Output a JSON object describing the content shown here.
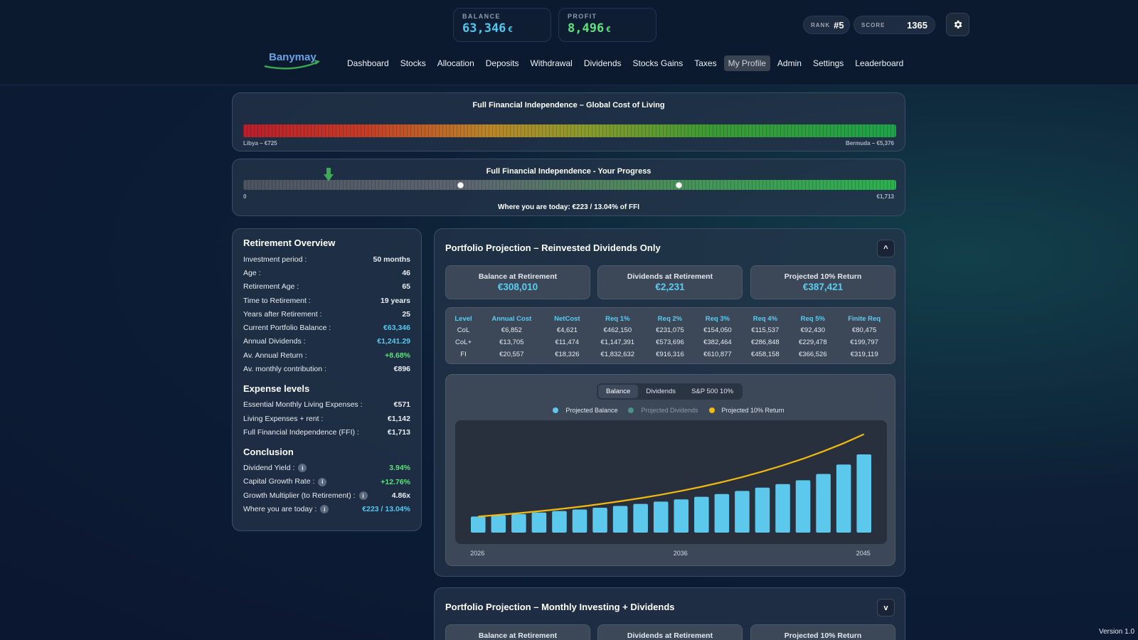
{
  "header": {
    "balance": {
      "label": "BALANCE",
      "value": "63,346",
      "currency": "€"
    },
    "profit": {
      "label": "PROFIT",
      "value": "8,496",
      "currency": "€"
    },
    "rank": {
      "label": "RANK",
      "value": "#5"
    },
    "score": {
      "label": "SCORE",
      "value": "1365"
    },
    "logo_text": "Banymay",
    "settings_icon": "gear-icon"
  },
  "nav": [
    "Dashboard",
    "Stocks",
    "Allocation",
    "Deposits",
    "Withdrawal",
    "Dividends",
    "Stocks Gains",
    "Taxes",
    "My Profile",
    "Admin",
    "Settings",
    "Leaderboard"
  ],
  "nav_active": "My Profile",
  "cost_of_living": {
    "title": "Full Financial Independence – Global Cost of Living",
    "min_label": "Libya – €725",
    "max_label": "Bermuda – €5,376"
  },
  "progress": {
    "title": "Full Financial Independence - Your Progress",
    "min_label": "0",
    "max_label": "€1,713",
    "today_text": "Where you are today: €223 / 13.04% of FFI",
    "fraction": 0.1304,
    "markers": [
      0.333,
      0.667
    ]
  },
  "overview": {
    "title": "Retirement Overview",
    "rows": [
      {
        "label": "Investment period :",
        "value": "50 months"
      },
      {
        "label": "Age :",
        "value": "46"
      },
      {
        "label": "Retirement Age :",
        "value": "65"
      },
      {
        "label": "Time to Retirement :",
        "value": "19 years"
      },
      {
        "label": "Years after Retirement :",
        "value": "25"
      },
      {
        "label": "Current Portfolio Balance :",
        "value": "€63,346"
      },
      {
        "label": "Annual Dividends :",
        "value": "€1,241.29"
      },
      {
        "label": "Av. Annual Return :",
        "value": "+8.68%"
      },
      {
        "label": "Av. monthly contribution :",
        "value": "€896"
      }
    ]
  },
  "expenses": {
    "title": "Expense levels",
    "rows": [
      {
        "label": "Essential Monthly Living Expenses :",
        "value": "€571"
      },
      {
        "label": "Living Expenses + rent :",
        "value": "€1,142"
      },
      {
        "label": "Full Financial Independence (FFI) :",
        "value": "€1,713"
      }
    ]
  },
  "conclusion": {
    "title": "Conclusion",
    "rows": [
      {
        "label": "Dividend Yield :",
        "value": "3.94%"
      },
      {
        "label": "Capital Growth Rate :",
        "value": "+12.76%"
      },
      {
        "label": "Growth Multiplier (to Retirement) :",
        "value": "4.86x"
      },
      {
        "label": "Where you are today :",
        "value": "€223 / 13.04%"
      }
    ]
  },
  "projection1": {
    "title": "Portfolio Projection – Reinvested Dividends Only",
    "collapse": "^",
    "kpis": [
      {
        "label": "Balance at Retirement",
        "value": "€308,010"
      },
      {
        "label": "Dividends at Retirement",
        "value": "€2,231"
      },
      {
        "label": "Projected 10% Return",
        "value": "€387,421"
      }
    ],
    "table": {
      "headers": [
        "Level",
        "Annual Cost",
        "NetCost",
        "Req 1%",
        "Req 2%",
        "Req 3%",
        "Req 4%",
        "Req 5%",
        "Finite Req"
      ],
      "rows": [
        [
          "CoL",
          "€6,852",
          "€4,621",
          "€462,150",
          "€231,075",
          "€154,050",
          "€115,537",
          "€92,430",
          "€80,475"
        ],
        [
          "CoL+",
          "€13,705",
          "€11,474",
          "€1,147,391",
          "€573,696",
          "€382,464",
          "€286,848",
          "€229,478",
          "€199,797"
        ],
        [
          "FI",
          "€20,557",
          "€18,326",
          "€1,832,632",
          "€916,316",
          "€610,877",
          "€458,158",
          "€366,526",
          "€319,119"
        ]
      ]
    },
    "tabs": [
      "Balance",
      "Dividends",
      "S&P 500 10%"
    ],
    "active_tab": "Balance",
    "legend": [
      {
        "name": "Projected Balance",
        "color": "#5cc8ec"
      },
      {
        "name": "Projected Dividends",
        "color": "#4f8f86"
      },
      {
        "name": "Projected 10% Return",
        "color": "#f2b90f"
      }
    ]
  },
  "chart_data": {
    "type": "bar",
    "categories": [
      "2026",
      "2027",
      "2028",
      "2029",
      "2030",
      "2031",
      "2032",
      "2033",
      "2034",
      "2035",
      "2036",
      "2037",
      "2038",
      "2039",
      "2040",
      "2041",
      "2042",
      "2043",
      "2044",
      "2045"
    ],
    "x_tick_labels": [
      "2026",
      "2036",
      "2045"
    ],
    "series": [
      {
        "name": "Projected Balance",
        "type": "bar",
        "values": [
          63346,
          68000,
          73000,
          79000,
          85000,
          91000,
          98000,
          105000,
          113000,
          122000,
          131000,
          141000,
          152000,
          164000,
          177000,
          191000,
          206000,
          231000,
          268000,
          308010
        ]
      },
      {
        "name": "Projected 10% Return",
        "type": "line",
        "values": [
          63346,
          69700,
          76600,
          84300,
          92700,
          102000,
          112200,
          123400,
          135800,
          149300,
          164300,
          180700,
          198800,
          218600,
          240500,
          264500,
          291000,
          320100,
          352100,
          387421
        ]
      }
    ],
    "ylim": [
      0,
      420000
    ],
    "grid": false
  },
  "projection2": {
    "title": "Portfolio Projection – Monthly Investing + Dividends",
    "collapse": "v",
    "kpis": [
      {
        "label": "Balance at Retirement"
      },
      {
        "label": "Dividends at Retirement"
      },
      {
        "label": "Projected 10% Return"
      }
    ]
  },
  "version": "Version 1.0"
}
